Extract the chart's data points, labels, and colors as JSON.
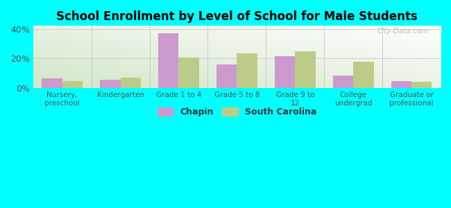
{
  "title": "School Enrollment by Level of School for Male Students",
  "categories": [
    "Nursery,\npreschool",
    "Kindergarten",
    "Grade 1 to 4",
    "Grade 5 to 8",
    "Grade 9 to\n12",
    "College\nundergrad",
    "Graduate or\nprofessional"
  ],
  "chapin": [
    6.5,
    5.5,
    37.0,
    16.0,
    21.5,
    8.5,
    5.0
  ],
  "south_carolina": [
    5.0,
    7.0,
    20.5,
    23.5,
    25.0,
    18.0,
    4.5
  ],
  "chapin_color": "#cc99cc",
  "sc_color": "#bbcc88",
  "bg_outer": "#00FFFF",
  "ylim": [
    0,
    42
  ],
  "yticks": [
    0,
    20,
    40
  ],
  "ytick_labels": [
    "0%",
    "20%",
    "40%"
  ],
  "bar_width": 0.35,
  "legend_chapin": "Chapin",
  "legend_sc": "South Carolina",
  "watermark": "City-Data.com"
}
